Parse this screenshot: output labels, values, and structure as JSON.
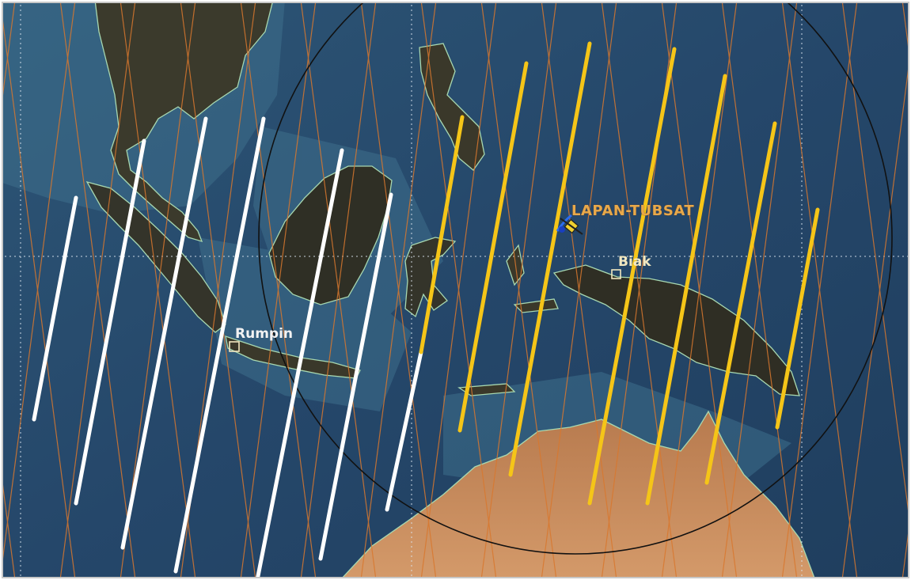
{
  "map": {
    "satellite_name": "LAPAN-TUBSAT",
    "locations": {
      "biak": "Biak",
      "rumpin": "Rumpin"
    },
    "icons": {
      "satellite": "satellite-icon",
      "ground_station": "ground-station-square-icon"
    },
    "colors": {
      "ocean": "#2a4b6a",
      "land": "#3a3528",
      "australia": "#c98a5a",
      "coastline": "#a8d8b0",
      "orbit_trace": "#d9782e",
      "visibility_circle": "#111111",
      "track_past": "#ffffff",
      "track_future": "#f5c518",
      "satellite_label": "#e8a94a",
      "graticule": "#dce6f0"
    },
    "legend": []
  }
}
